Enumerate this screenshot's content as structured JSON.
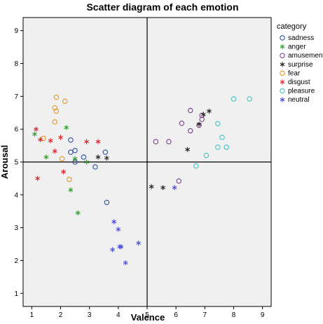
{
  "chart_data": {
    "type": "scatter",
    "title": "Scatter diagram of each emotion",
    "xlabel": "Valence",
    "ylabel": "Arousal",
    "xlim": [
      0.7,
      9.3
    ],
    "ylim": [
      0.6,
      9.4
    ],
    "x_ticks": [
      1,
      2,
      3,
      4,
      5,
      6,
      7,
      8,
      9
    ],
    "y_ticks": [
      1,
      2,
      3,
      4,
      5,
      6,
      7,
      8,
      9
    ],
    "x_tick_labels": [
      "1",
      "2",
      "3",
      "4",
      "5",
      "6",
      "7",
      "8",
      "9"
    ],
    "y_tick_labels": [
      "1",
      "2",
      "3",
      "4",
      "5",
      "6",
      "7",
      "8",
      "9"
    ],
    "reference_lines": {
      "x": 5,
      "y": 5
    },
    "grid": false,
    "plot_background": "#f0f0f0",
    "legend": {
      "title": "category",
      "placement": "right"
    },
    "series": [
      {
        "name": "sadness",
        "marker": "circle",
        "color": "#2b4f9e",
        "points": [
          [
            2.35,
            5.67
          ],
          [
            2.35,
            5.3
          ],
          [
            2.5,
            5.35
          ],
          [
            2.5,
            5.0
          ],
          [
            2.8,
            5.15
          ],
          [
            3.2,
            4.85
          ],
          [
            3.55,
            5.3
          ],
          [
            3.6,
            3.77
          ]
        ]
      },
      {
        "name": "anger",
        "marker": "asterisk",
        "color": "#2ca02c",
        "points": [
          [
            1.1,
            5.85
          ],
          [
            1.5,
            5.15
          ],
          [
            2.2,
            6.05
          ],
          [
            2.5,
            5.1
          ],
          [
            2.9,
            5.0
          ],
          [
            2.35,
            4.15
          ],
          [
            2.6,
            3.45
          ]
        ]
      },
      {
        "name": "amusement",
        "marker": "circle",
        "color": "#7b3f8c",
        "points": [
          [
            5.3,
            5.62
          ],
          [
            5.75,
            5.62
          ],
          [
            6.2,
            6.18
          ],
          [
            6.5,
            6.57
          ],
          [
            6.5,
            5.95
          ],
          [
            6.8,
            6.12
          ],
          [
            6.9,
            6.3
          ],
          [
            6.9,
            6.42
          ],
          [
            6.1,
            4.42
          ]
        ]
      },
      {
        "name": "surprise",
        "marker": "asterisk",
        "color": "#222222",
        "points": [
          [
            3.3,
            5.15
          ],
          [
            3.6,
            5.12
          ],
          [
            6.4,
            5.38
          ],
          [
            6.8,
            6.15
          ],
          [
            6.95,
            6.45
          ],
          [
            7.15,
            6.55
          ],
          [
            5.15,
            4.25
          ],
          [
            5.55,
            4.22
          ]
        ]
      },
      {
        "name": "fear",
        "marker": "circle",
        "color": "#e8961e",
        "points": [
          [
            1.85,
            6.97
          ],
          [
            2.15,
            6.85
          ],
          [
            1.8,
            6.65
          ],
          [
            1.85,
            6.55
          ],
          [
            1.8,
            6.22
          ],
          [
            1.4,
            5.72
          ],
          [
            2.05,
            5.1
          ],
          [
            2.3,
            4.47
          ]
        ]
      },
      {
        "name": "disgust",
        "marker": "asterisk",
        "color": "#e0222a",
        "points": [
          [
            1.15,
            6.0
          ],
          [
            1.3,
            5.68
          ],
          [
            1.65,
            5.65
          ],
          [
            2.0,
            5.75
          ],
          [
            1.8,
            5.33
          ],
          [
            2.1,
            4.7
          ],
          [
            1.2,
            4.5
          ],
          [
            2.9,
            5.62
          ],
          [
            3.3,
            5.62
          ]
        ]
      },
      {
        "name": "pleasure",
        "marker": "circle",
        "color": "#40c4c4",
        "points": [
          [
            8.0,
            6.92
          ],
          [
            8.55,
            6.92
          ],
          [
            7.45,
            6.17
          ],
          [
            7.6,
            5.75
          ],
          [
            7.45,
            5.45
          ],
          [
            7.75,
            5.45
          ],
          [
            7.05,
            5.2
          ],
          [
            6.7,
            4.88
          ]
        ]
      },
      {
        "name": "neutral",
        "marker": "asterisk",
        "color": "#4a4ad8",
        "points": [
          [
            5.95,
            4.22
          ],
          [
            3.85,
            3.18
          ],
          [
            4.0,
            2.95
          ],
          [
            4.05,
            2.42
          ],
          [
            4.1,
            2.42
          ],
          [
            3.8,
            2.33
          ],
          [
            4.7,
            2.53
          ],
          [
            4.25,
            1.93
          ]
        ]
      }
    ]
  }
}
